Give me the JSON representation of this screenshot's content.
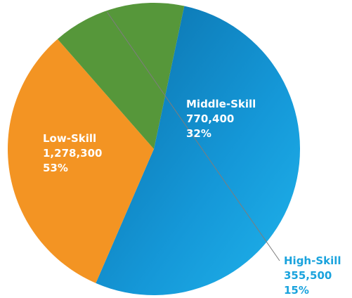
{
  "chart_data": {
    "type": "pie",
    "slices": [
      {
        "name": "Low-Skill",
        "value": 1278300,
        "value_text": "1,278,300",
        "percent_text": "53%",
        "percent": 53,
        "color": "#1a9fdf",
        "label_position": "inside"
      },
      {
        "name": "Middle-Skill",
        "value": 770400,
        "value_text": "770,400",
        "percent_text": "32%",
        "percent": 32,
        "color": "#f39423",
        "label_position": "inside"
      },
      {
        "name": "High-Skill",
        "value": 355500,
        "value_text": "355,500",
        "percent_text": "15%",
        "percent": 15,
        "color": "#56973a",
        "label_position": "outside"
      }
    ],
    "start_angle_from_top_degrees": 12,
    "direction": "clockwise",
    "legend": "none"
  }
}
